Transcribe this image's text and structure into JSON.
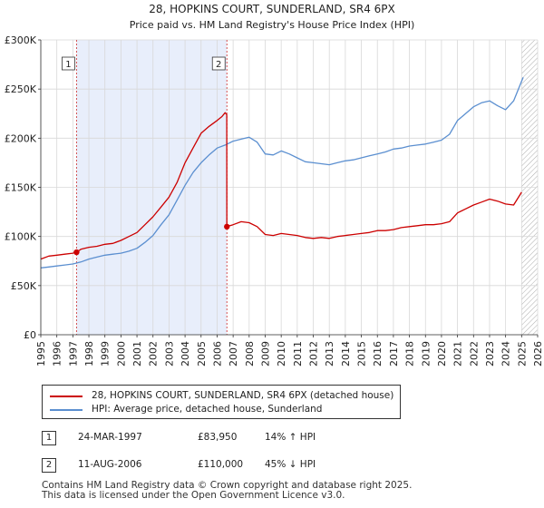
{
  "chart_data": {
    "type": "line",
    "title": "28, HOPKINS COURT, SUNDERLAND, SR4 6PX",
    "subtitle": "Price paid vs. HM Land Registry's House Price Index (HPI)",
    "xlim": [
      1995,
      2026
    ],
    "ylim": [
      0,
      300000
    ],
    "x_ticks": [
      1995,
      1996,
      1997,
      1998,
      1999,
      2000,
      2001,
      2002,
      2003,
      2004,
      2005,
      2006,
      2007,
      2008,
      2009,
      2010,
      2011,
      2012,
      2013,
      2014,
      2015,
      2016,
      2017,
      2018,
      2019,
      2020,
      2021,
      2022,
      2023,
      2024,
      2025,
      2026
    ],
    "x_tick_labels": [
      "1995",
      "1996",
      "1997",
      "1998",
      "1999",
      "2000",
      "2001",
      "2002",
      "2003",
      "2004",
      "2005",
      "2006",
      "2007",
      "2008",
      "2009",
      "2010",
      "2011",
      "2012",
      "2013",
      "2014",
      "2015",
      "2016",
      "2017",
      "2018",
      "2019",
      "2020",
      "2021",
      "2022",
      "2023",
      "2024",
      "2025",
      "2026"
    ],
    "y_ticks": [
      0,
      50000,
      100000,
      150000,
      200000,
      250000,
      300000
    ],
    "y_tick_labels": [
      "£0",
      "£50K",
      "£100K",
      "£150K",
      "£200K",
      "£250K",
      "£300K"
    ],
    "grid": true,
    "shaded_region": [
      1997.23,
      2006.61
    ],
    "future_hatch_start": 2025.0,
    "markers": [
      {
        "label": "1",
        "x": 1997.23,
        "y": 83950
      },
      {
        "label": "2",
        "x": 2006.61,
        "y": 110000
      }
    ],
    "series": [
      {
        "name": "28, HOPKINS COURT, SUNDERLAND, SR4 6PX (detached house)",
        "color": "#cc0000",
        "x": [
          1995.0,
          1995.5,
          1996.0,
          1996.5,
          1997.0,
          1997.23,
          1997.5,
          1998.0,
          1998.5,
          1999.0,
          1999.5,
          2000.0,
          2000.5,
          2001.0,
          2001.5,
          2002.0,
          2002.5,
          2003.0,
          2003.5,
          2004.0,
          2004.5,
          2005.0,
          2005.5,
          2006.0,
          2006.3,
          2006.5,
          2006.6,
          2006.61,
          2007.0,
          2007.5,
          2008.0,
          2008.5,
          2009.0,
          2009.5,
          2010.0,
          2010.5,
          2011.0,
          2011.5,
          2012.0,
          2012.5,
          2013.0,
          2013.5,
          2014.0,
          2014.5,
          2015.0,
          2015.5,
          2016.0,
          2016.5,
          2017.0,
          2017.5,
          2018.0,
          2018.5,
          2019.0,
          2019.5,
          2020.0,
          2020.5,
          2021.0,
          2021.5,
          2022.0,
          2022.5,
          2023.0,
          2023.5,
          2024.0,
          2024.5,
          2025.0
        ],
        "values": [
          77000,
          80000,
          81000,
          82000,
          83000,
          83950,
          87000,
          89000,
          90000,
          92000,
          93000,
          96000,
          100000,
          104000,
          112000,
          120000,
          130000,
          140000,
          155000,
          175000,
          190000,
          205000,
          212000,
          218000,
          222000,
          226000,
          224000,
          110000,
          112000,
          115000,
          114000,
          110000,
          102000,
          101000,
          103000,
          102000,
          101000,
          99000,
          98000,
          99000,
          98000,
          100000,
          101000,
          102000,
          103000,
          104000,
          106000,
          106000,
          107000,
          109000,
          110000,
          111000,
          112000,
          112000,
          113000,
          115000,
          124000,
          128000,
          132000,
          135000,
          138000,
          136000,
          133000,
          132000,
          145000
        ]
      },
      {
        "name": "HPI: Average price, detached house, Sunderland",
        "color": "#5b8fd0",
        "x": [
          1995.0,
          1995.5,
          1996.0,
          1996.5,
          1997.0,
          1997.5,
          1998.0,
          1998.5,
          1999.0,
          1999.5,
          2000.0,
          2000.5,
          2001.0,
          2001.5,
          2002.0,
          2002.5,
          2003.0,
          2003.5,
          2004.0,
          2004.5,
          2005.0,
          2005.5,
          2006.0,
          2006.5,
          2007.0,
          2007.5,
          2008.0,
          2008.5,
          2009.0,
          2009.5,
          2010.0,
          2010.5,
          2011.0,
          2011.5,
          2012.0,
          2012.5,
          2013.0,
          2013.5,
          2014.0,
          2014.5,
          2015.0,
          2015.5,
          2016.0,
          2016.5,
          2017.0,
          2017.5,
          2018.0,
          2018.5,
          2019.0,
          2019.5,
          2020.0,
          2020.5,
          2021.0,
          2021.5,
          2022.0,
          2022.5,
          2023.0,
          2023.5,
          2024.0,
          2024.5,
          2025.0,
          2025.1
        ],
        "values": [
          68000,
          69000,
          70000,
          71000,
          72000,
          74000,
          77000,
          79000,
          81000,
          82000,
          83000,
          85000,
          88000,
          94000,
          101000,
          112000,
          122000,
          137000,
          152000,
          165000,
          175000,
          183000,
          190000,
          193000,
          197000,
          199000,
          201000,
          196000,
          184000,
          183000,
          187000,
          184000,
          180000,
          176000,
          175000,
          174000,
          173000,
          175000,
          177000,
          178000,
          180000,
          182000,
          184000,
          186000,
          189000,
          190000,
          192000,
          193000,
          194000,
          196000,
          198000,
          204000,
          218000,
          225000,
          232000,
          236000,
          238000,
          233000,
          229000,
          238000,
          258000,
          262000
        ]
      }
    ]
  },
  "legend": {
    "items": [
      {
        "label": "28, HOPKINS COURT, SUNDERLAND, SR4 6PX (detached house)",
        "color": "#cc0000"
      },
      {
        "label": "HPI: Average price, detached house, Sunderland",
        "color": "#5b8fd0"
      }
    ]
  },
  "sales": [
    {
      "num": "1",
      "date": "24-MAR-1997",
      "price": "£83,950",
      "hpi": "14% ↑ HPI"
    },
    {
      "num": "2",
      "date": "11-AUG-2006",
      "price": "£110,000",
      "hpi": "45% ↓ HPI"
    }
  ],
  "footer": {
    "line1": "Contains HM Land Registry data © Crown copyright and database right 2025.",
    "line2": "This data is licensed under the Open Government Licence v3.0."
  }
}
